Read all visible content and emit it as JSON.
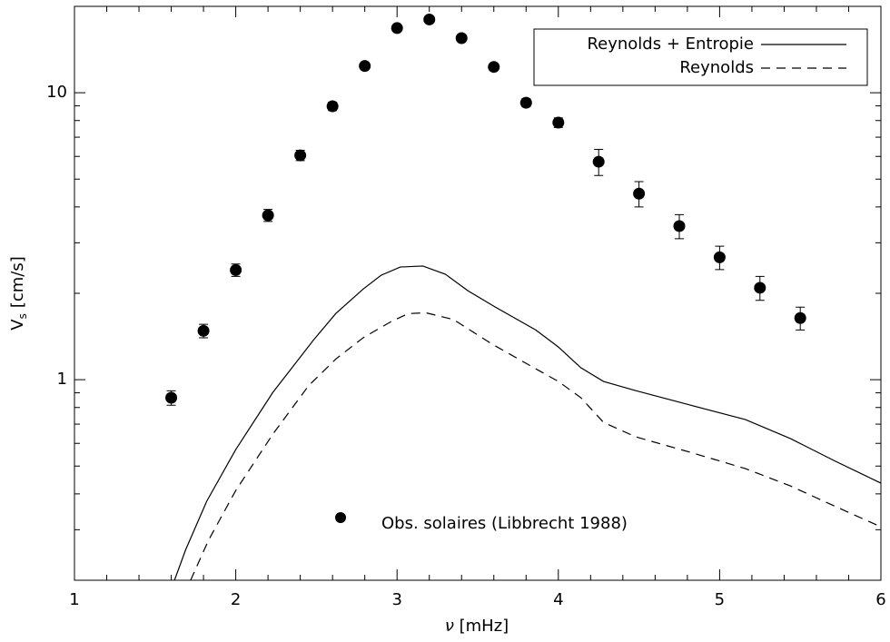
{
  "chart_data": {
    "type": "scatter",
    "x_label": [
      "ν",
      "[mHz]"
    ],
    "y_label": [
      "V",
      "s",
      "[cm/s]"
    ],
    "xlim": [
      1,
      6
    ],
    "ylim": [
      0.2,
      20
    ],
    "log_y": true,
    "xticks": [
      1,
      2,
      3,
      4,
      5,
      6
    ],
    "x_minor_ticks": [
      1.2,
      1.4,
      1.6,
      1.8,
      2.2,
      2.4,
      2.6,
      2.8,
      3.2,
      3.4,
      3.6,
      3.8,
      4.2,
      4.4,
      4.6,
      4.8,
      5.2,
      5.4,
      5.6,
      5.8
    ],
    "yticks": [
      1,
      10
    ],
    "y_minor_ticks": [
      0.3,
      0.4,
      0.5,
      0.6,
      0.7,
      0.8,
      0.9,
      2,
      3,
      4,
      5,
      6,
      7,
      8,
      9,
      20
    ],
    "legend": "upper right",
    "series": [
      {
        "name": "Obs. solaires (Libbrecht 1988)",
        "type": "scatter",
        "color": "#000000",
        "x": [
          1.6,
          1.8,
          2.0,
          2.2,
          2.4,
          2.6,
          2.8,
          3.0,
          3.2,
          3.4,
          3.6,
          3.8,
          4.0,
          4.25,
          4.5,
          4.75,
          5.0,
          5.25,
          5.5
        ],
        "values": [
          0.865,
          1.48,
          2.41,
          3.74,
          6.05,
          8.97,
          12.4,
          16.8,
          18.0,
          15.5,
          12.3,
          9.23,
          7.87,
          5.75,
          4.45,
          3.43,
          2.67,
          2.09,
          1.64
        ],
        "errors": [
          0.05,
          0.08,
          0.12,
          0.18,
          0.25,
          0.3,
          0.3,
          0.3,
          0.3,
          0.3,
          0.3,
          0.3,
          0.3,
          0.6,
          0.45,
          0.33,
          0.25,
          0.2,
          0.15
        ]
      },
      {
        "name": "Reynolds + Entropie",
        "type": "line",
        "style": "solid",
        "color": "#000000",
        "x": [
          1.62,
          1.69,
          1.82,
          2.0,
          2.23,
          2.48,
          2.62,
          2.79,
          2.9,
          3.02,
          3.16,
          3.3,
          3.44,
          3.61,
          3.86,
          4.0,
          4.14,
          4.28,
          4.48,
          4.82,
          5.16,
          5.44,
          5.72,
          6.0
        ],
        "values": [
          0.2,
          0.256,
          0.377,
          0.571,
          0.903,
          1.37,
          1.7,
          2.07,
          2.31,
          2.47,
          2.49,
          2.33,
          2.04,
          1.79,
          1.49,
          1.3,
          1.1,
          0.986,
          0.916,
          0.815,
          0.726,
          0.623,
          0.519,
          0.436
        ]
      },
      {
        "name": "Reynolds",
        "type": "line",
        "style": "dashed",
        "color": "#000000",
        "x": [
          1.72,
          1.83,
          2.0,
          2.23,
          2.45,
          2.62,
          2.79,
          2.96,
          3.07,
          3.18,
          3.35,
          3.58,
          3.8,
          4.0,
          4.14,
          4.28,
          4.48,
          4.82,
          5.16,
          5.44,
          5.72,
          6.0
        ],
        "values": [
          0.2,
          0.275,
          0.411,
          0.646,
          0.95,
          1.18,
          1.4,
          1.59,
          1.7,
          1.71,
          1.62,
          1.34,
          1.14,
          0.986,
          0.865,
          0.71,
          0.632,
          0.558,
          0.49,
          0.426,
          0.361,
          0.307
        ]
      }
    ]
  }
}
